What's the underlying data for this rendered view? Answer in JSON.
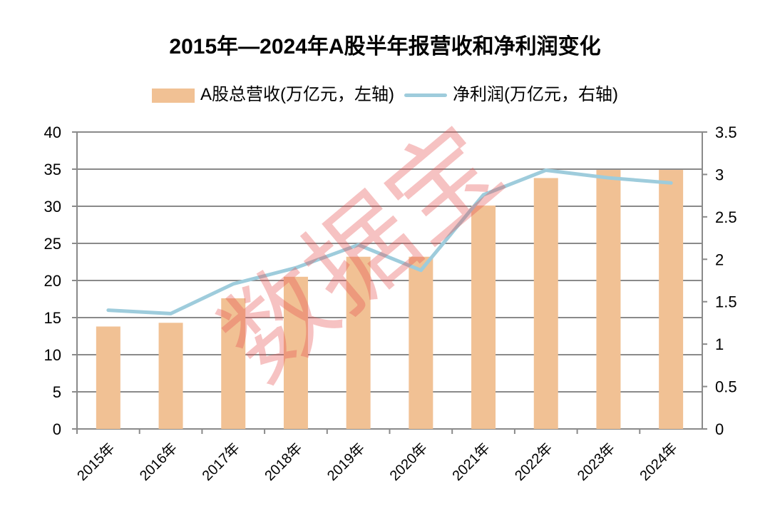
{
  "chart_data": {
    "type": "bar+line",
    "title": "2015年—2024年A股半年报营收和净利润变化",
    "categories": [
      "2015年",
      "2016年",
      "2017年",
      "2018年",
      "2019年",
      "2020年",
      "2021年",
      "2022年",
      "2023年",
      "2024年"
    ],
    "series": [
      {
        "name": "A股总营收(万亿元，左轴)",
        "type": "bar",
        "axis": "left",
        "color": "#F1C194",
        "values": [
          13.8,
          14.3,
          17.6,
          20.5,
          23.2,
          23.2,
          30.1,
          33.8,
          34.9,
          34.9
        ]
      },
      {
        "name": "净利润(万亿元，右轴)",
        "type": "line",
        "axis": "right",
        "color": "#9ECCDC",
        "values": [
          1.4,
          1.36,
          1.71,
          1.9,
          2.17,
          1.87,
          2.76,
          3.05,
          2.96,
          2.9
        ]
      }
    ],
    "left_axis": {
      "ylim": [
        0,
        40
      ],
      "ticks": [
        "0",
        "5",
        "10",
        "15",
        "20",
        "25",
        "30",
        "35",
        "40"
      ]
    },
    "right_axis": {
      "ylim": [
        0,
        3.5
      ],
      "ticks": [
        "0",
        "0.5",
        "1",
        "1.5",
        "2",
        "2.5",
        "3",
        "3.5"
      ]
    },
    "grid": true,
    "legend": "top",
    "watermark": "数据宝"
  }
}
